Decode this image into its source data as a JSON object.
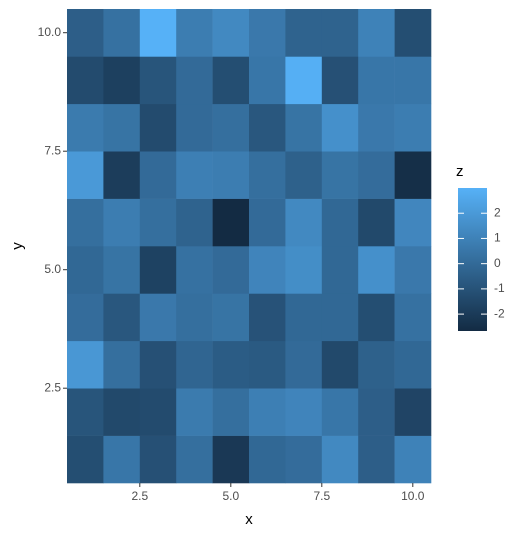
{
  "chart_data": {
    "type": "heatmap",
    "x_label": "x",
    "y_label": "y",
    "legend_title": "z",
    "x": [
      1,
      2,
      3,
      4,
      5,
      6,
      7,
      8,
      9,
      10
    ],
    "y": [
      1,
      2,
      3,
      4,
      5,
      6,
      7,
      8,
      9,
      10
    ],
    "z": [
      [
        -1.2,
        0.5,
        -1.1,
        0.2,
        -2.1,
        -0.1,
        0.1,
        1.3,
        -0.5,
        1.0
      ],
      [
        -0.9,
        -1.4,
        -1.3,
        0.7,
        0.2,
        0.9,
        1.1,
        0.5,
        -0.5,
        -1.6
      ],
      [
        1.9,
        0.2,
        -1.1,
        -0.2,
        -0.6,
        -0.7,
        0.0,
        -1.4,
        -0.4,
        -0.1
      ],
      [
        0.1,
        -0.8,
        0.6,
        0.2,
        0.4,
        -1.0,
        -0.1,
        -0.1,
        -1.2,
        0.3
      ],
      [
        -0.1,
        0.4,
        -1.7,
        0.3,
        0.0,
        1.1,
        1.5,
        -0.1,
        1.6,
        0.6
      ],
      [
        0.2,
        0.8,
        0.2,
        -0.3,
        -2.67,
        0.0,
        1.3,
        -0.1,
        -1.4,
        1.2
      ],
      [
        2.0,
        -1.9,
        0.0,
        0.9,
        0.8,
        0.2,
        -0.4,
        0.4,
        0.1,
        -2.5
      ],
      [
        0.7,
        0.4,
        -1.3,
        0.0,
        0.2,
        -0.8,
        0.4,
        1.6,
        0.6,
        0.8
      ],
      [
        -1.3,
        -1.8,
        -0.9,
        0.0,
        -1.2,
        0.5,
        2.9,
        -1.1,
        0.5,
        0.5
      ],
      [
        -0.5,
        0.3,
        3.0,
        0.8,
        1.3,
        0.6,
        -0.3,
        -0.3,
        1.0,
        -1.2
      ]
    ],
    "low_color": "#132B43",
    "high_color": "#56B1F7",
    "xlim": [
      0.5,
      10.5
    ],
    "xticks": [
      {
        "value": 2.5,
        "label": "2.5"
      },
      {
        "value": 5,
        "label": "5.0"
      },
      {
        "value": 7.5,
        "label": "7.5"
      },
      {
        "value": 10,
        "label": "10.0"
      }
    ],
    "ylim": [
      0.5,
      10.5
    ],
    "yticks": [
      {
        "value": 2.5,
        "label": "2.5"
      },
      {
        "value": 5,
        "label": "5.0"
      },
      {
        "value": 7.5,
        "label": "7.5"
      },
      {
        "value": 10,
        "label": "10.0"
      }
    ],
    "legend_ticks": [
      -2,
      -1,
      0,
      1,
      2
    ],
    "grid": false
  }
}
